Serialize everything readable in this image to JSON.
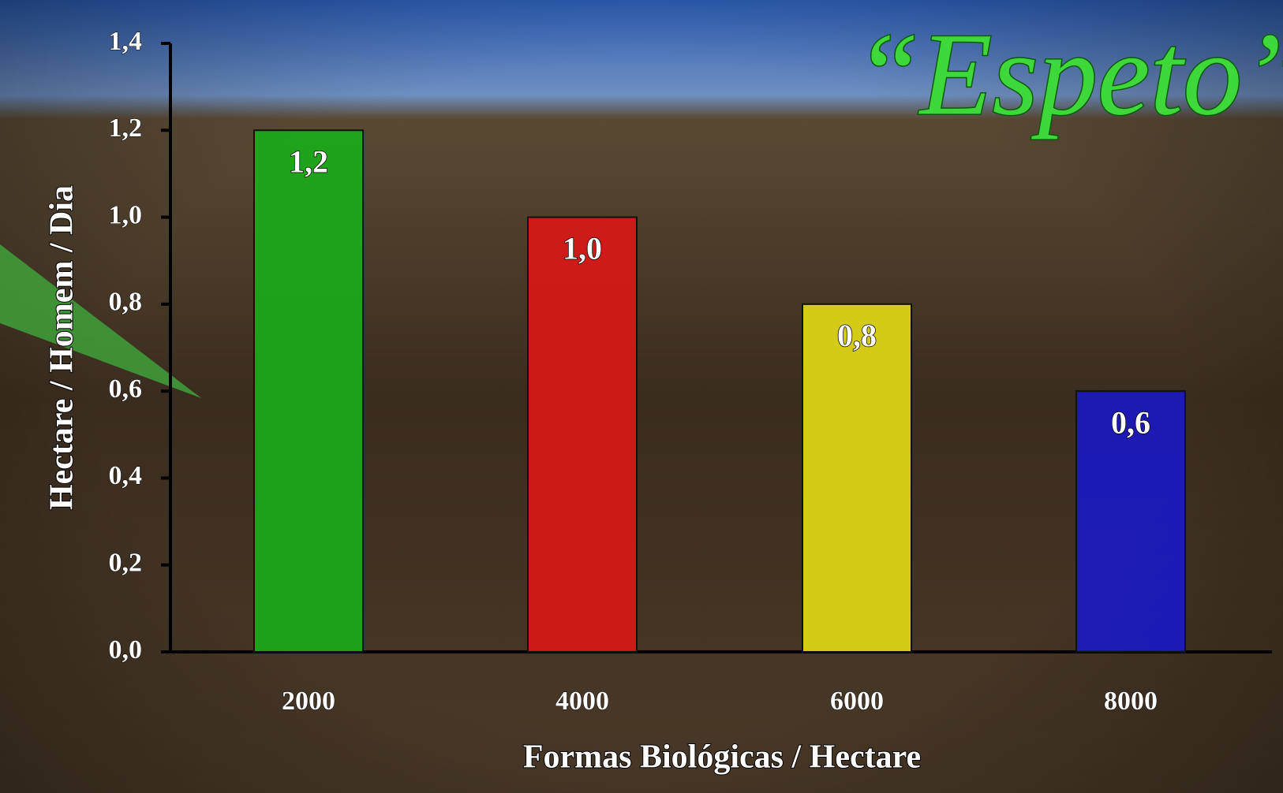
{
  "chart_data": {
    "type": "bar",
    "title": "“Espeto”",
    "x_label": "Formas Biológicas / Hectare",
    "y_label": "Hectare / Homem / Dia",
    "categories": [
      "2000",
      "4000",
      "6000",
      "8000"
    ],
    "values": [
      1.2,
      1.0,
      0.8,
      0.6
    ],
    "value_labels": [
      "1,2",
      "1,0",
      "0,8",
      "0,6"
    ],
    "colors": [
      "#18b018",
      "#e01616",
      "#e8e014",
      "#1818c8"
    ],
    "ylim": [
      0,
      1.4
    ],
    "yticks": [
      {
        "value": 0,
        "label": "0,0"
      },
      {
        "value": 0.2,
        "label": "0,2"
      },
      {
        "value": 0.4,
        "label": "0,4"
      },
      {
        "value": 0.6,
        "label": "0,6"
      },
      {
        "value": 0.8,
        "label": "0,8"
      },
      {
        "value": 1.0,
        "label": "1,0"
      },
      {
        "value": 1.2,
        "label": "1,2"
      },
      {
        "value": 1.4,
        "label": "1,4"
      }
    ],
    "grid": false
  }
}
